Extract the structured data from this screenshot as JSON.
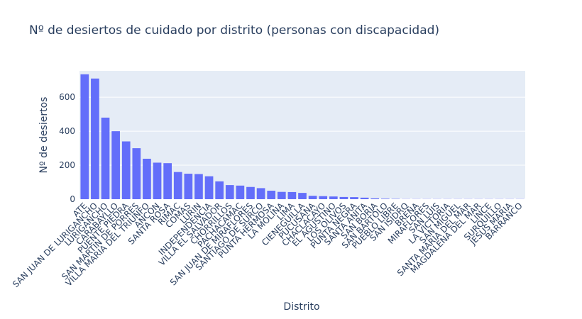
{
  "chart_data": {
    "type": "bar",
    "title": "Nº de desiertos de cuidado por distrito (personas con discapacidad)",
    "xlabel": "Distrito",
    "ylabel": "Nº de desiertos",
    "ylim": [
      0,
      755
    ],
    "yticks": [
      0,
      200,
      400,
      600
    ],
    "grid": true,
    "colors": {
      "bar": "#636efa",
      "plot_bg": "#e5ecf6",
      "grid": "#ffffff",
      "text": "#2a3f5f"
    },
    "categories": [
      "ATE",
      "SAN JUAN DE LURIGANCHO",
      "LURIGANCHO",
      "CARABAYLLO",
      "PUENTE PIEDRA",
      "SAN MARTIN DE PORRES",
      "VILLA MARIA DEL TRIUNFO",
      "ANCON",
      "SANTA ROSA",
      "RIMAC",
      "COMAS",
      "LURIN",
      "INDEPENDENCIA",
      "VILLA EL SALVADOR",
      "CHORRILLOS",
      "PACHACAMAC",
      "SAN JUAN DE MIRAFLORES",
      "SANTIAGO DE SURCO",
      "PUNTA HERMOSA",
      "LA MOLINA",
      "LIMA",
      "CIENEGUILLA",
      "PUCUSANA",
      "CHACLACAYO",
      "EL AGUSTINO",
      "LOS OLIVOS",
      "PUNTA NEGRA",
      "SANTA ANITA",
      "SAN BORJA",
      "SAN BARTOLO",
      "PUEBLO LIBRE",
      "SAN ISIDRO",
      "BREÑA",
      "MIRAFLORES",
      "SAN LUIS",
      "LA VICTORIA",
      "SAN MIGUEL",
      "SANTA MARIA DEL MAR",
      "MAGDALENA DEL MAR",
      "LINCE",
      "SURQUILLO",
      "JESUS MARIA",
      "BARRANCO"
    ],
    "values": [
      735,
      710,
      480,
      400,
      340,
      300,
      238,
      215,
      212,
      160,
      150,
      148,
      135,
      105,
      83,
      80,
      72,
      65,
      50,
      43,
      42,
      37,
      20,
      18,
      16,
      13,
      12,
      9,
      5,
      3,
      2,
      1,
      1,
      1,
      1,
      1,
      1,
      1,
      1,
      1,
      1,
      1,
      1
    ]
  }
}
